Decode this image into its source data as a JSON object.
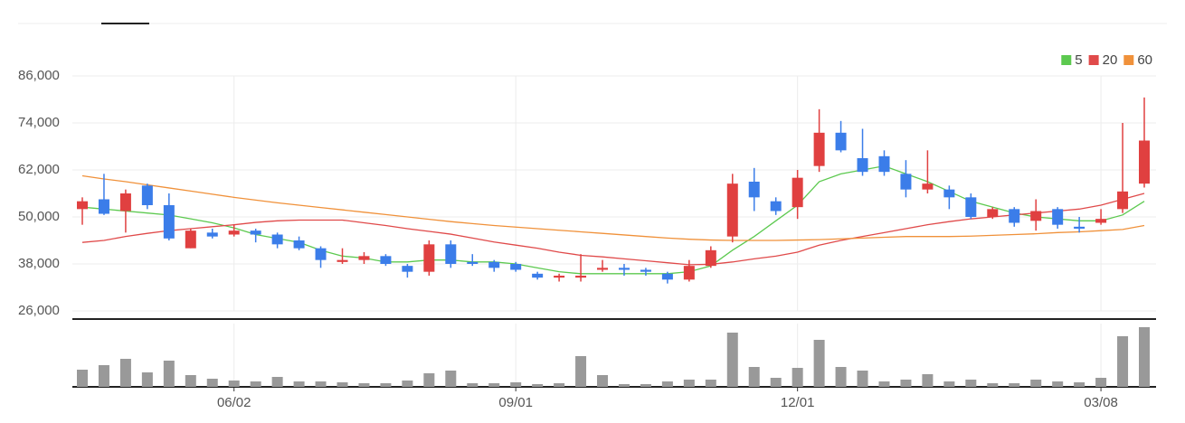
{
  "chart_data": {
    "type": "candlestick",
    "categories": [
      null,
      null,
      null,
      null,
      null,
      null,
      null,
      "06/02",
      null,
      null,
      null,
      null,
      null,
      null,
      null,
      null,
      null,
      null,
      null,
      null,
      "09/01",
      null,
      null,
      null,
      null,
      null,
      null,
      null,
      null,
      null,
      null,
      null,
      null,
      "12/01",
      null,
      null,
      null,
      null,
      null,
      null,
      null,
      null,
      null,
      null,
      null,
      null,
      null,
      "03/08",
      null,
      null
    ],
    "open": [
      52000,
      54500,
      51500,
      58000,
      53000,
      42000,
      46000,
      45500,
      46500,
      45500,
      44000,
      42000,
      38500,
      39000,
      40000,
      37500,
      36000,
      43000,
      38500,
      38500,
      38000,
      35500,
      34500,
      34500,
      36500,
      37000,
      36500,
      35500,
      34000,
      37500,
      45000,
      59000,
      54000,
      52500,
      63000,
      71500,
      65000,
      65500,
      61000,
      57000,
      57000,
      55000,
      50000,
      52000,
      49000,
      52000,
      47500,
      48500,
      52000,
      58500
    ],
    "high": [
      55000,
      61000,
      57000,
      58500,
      56000,
      47000,
      47000,
      48000,
      47000,
      46000,
      45000,
      42500,
      42000,
      41000,
      40500,
      38000,
      44000,
      44000,
      40500,
      39000,
      38500,
      36000,
      35500,
      40500,
      39000,
      38000,
      37000,
      36000,
      39000,
      42500,
      61000,
      62500,
      55000,
      62000,
      77500,
      74500,
      72500,
      67000,
      64500,
      67000,
      58000,
      56000,
      52500,
      52500,
      54500,
      52500,
      50000,
      52000,
      74000,
      80500
    ],
    "low": [
      48000,
      50500,
      46000,
      52000,
      44000,
      42000,
      44500,
      45000,
      43500,
      42000,
      41500,
      37000,
      38000,
      38000,
      37500,
      34500,
      35000,
      37000,
      37500,
      36000,
      36000,
      34000,
      33500,
      33500,
      36000,
      35000,
      35000,
      33000,
      33500,
      37000,
      43500,
      51500,
      50500,
      49500,
      61500,
      66500,
      60500,
      60500,
      55000,
      56000,
      52000,
      49500,
      49500,
      47500,
      46500,
      47000,
      46000,
      48000,
      51000,
      57500
    ],
    "close": [
      54000,
      50800,
      56000,
      53000,
      44500,
      46500,
      45000,
      46500,
      45500,
      43000,
      42000,
      39000,
      39000,
      40000,
      38000,
      36000,
      43000,
      38000,
      38000,
      37000,
      36500,
      34500,
      35000,
      35000,
      37000,
      36500,
      36000,
      34000,
      37500,
      41500,
      58500,
      55000,
      51500,
      60000,
      71500,
      67000,
      61500,
      61500,
      57000,
      58500,
      55000,
      50000,
      52000,
      48500,
      51500,
      48000,
      47000,
      49500,
      56500,
      69500
    ],
    "up_color": "#e04040",
    "down_color": "#3b7de9",
    "series": [
      {
        "name": "5",
        "color": "#5cc94f",
        "values": [
          52500,
          52000,
          51500,
          51000,
          50500,
          49500,
          48500,
          47200,
          45500,
          44500,
          43500,
          41500,
          40000,
          39500,
          38500,
          38500,
          39000,
          39000,
          38500,
          38500,
          38000,
          37000,
          36000,
          35500,
          35500,
          35500,
          35500,
          35500,
          36000,
          37500,
          41500,
          45000,
          49000,
          53000,
          59000,
          61000,
          62000,
          63000,
          61000,
          59000,
          56500,
          54000,
          52500,
          51000,
          50000,
          49500,
          49000,
          49000,
          50500,
          54000
        ]
      },
      {
        "name": "20",
        "color": "#e04a4a",
        "values": [
          43500,
          44000,
          45000,
          45800,
          46500,
          47000,
          47500,
          48000,
          48600,
          49000,
          49200,
          49200,
          49200,
          48500,
          47800,
          47000,
          46300,
          45600,
          44600,
          43600,
          42800,
          42000,
          41000,
          40200,
          39800,
          39300,
          38800,
          38300,
          37800,
          37900,
          38500,
          39300,
          40000,
          41000,
          42800,
          44000,
          45000,
          46000,
          47000,
          48000,
          48800,
          49500,
          50000,
          50500,
          51000,
          51500,
          52000,
          53000,
          54500,
          56000
        ]
      },
      {
        "name": "60",
        "color": "#f0913a",
        "values": [
          60500,
          59700,
          59000,
          58200,
          57400,
          56600,
          55800,
          55000,
          54300,
          53600,
          53000,
          52400,
          51800,
          51200,
          50600,
          50000,
          49400,
          48800,
          48300,
          47800,
          47400,
          47000,
          46600,
          46200,
          45800,
          45400,
          45000,
          44600,
          44300,
          44100,
          44000,
          44000,
          44000,
          44100,
          44200,
          44400,
          44600,
          44800,
          45000,
          45000,
          45000,
          45100,
          45300,
          45500,
          45700,
          46000,
          46200,
          46500,
          46800,
          47800
        ]
      }
    ],
    "ylim": [
      26000,
      86000
    ],
    "yticks": [
      {
        "value": 26000,
        "label": "26,000"
      },
      {
        "value": 38000,
        "label": "38,000"
      },
      {
        "value": 50000,
        "label": "50,000"
      },
      {
        "value": 62000,
        "label": "62,000"
      },
      {
        "value": 74000,
        "label": "74,000"
      },
      {
        "value": 86000,
        "label": "86,000"
      }
    ],
    "volume": {
      "color": "#999999",
      "ylim": [
        0,
        70
      ],
      "values": [
        19,
        24,
        31,
        16,
        29,
        13,
        9,
        7,
        6,
        11,
        6,
        6,
        5,
        4,
        4,
        7,
        15,
        18,
        4,
        4,
        5,
        3,
        4,
        34,
        13,
        3,
        3,
        6,
        8,
        8,
        60,
        22,
        10,
        21,
        52,
        22,
        18,
        6,
        8,
        14,
        6,
        8,
        4,
        4,
        8,
        6,
        5,
        10,
        56,
        66
      ]
    },
    "grid": true,
    "legend": "top-right"
  }
}
